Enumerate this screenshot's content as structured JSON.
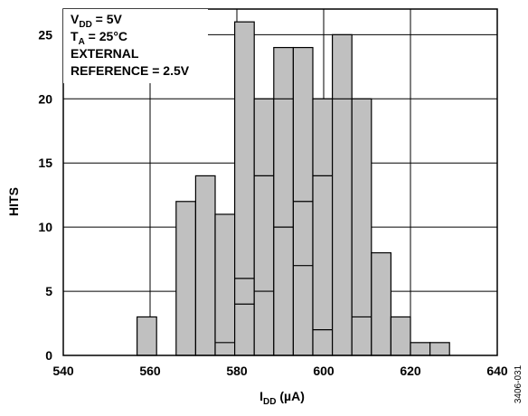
{
  "chart_data": {
    "type": "bar",
    "ylabel": "HITS",
    "xlabel": {
      "main": "I",
      "sub": "DD",
      "unit": " (µA)"
    },
    "xlim": [
      540,
      640
    ],
    "ylim": [
      0,
      27
    ],
    "xticks": [
      540,
      560,
      580,
      600,
      620,
      640
    ],
    "yticks": [
      0,
      5,
      10,
      15,
      20,
      25
    ],
    "xtick_labels": [
      "540",
      "560",
      "580",
      "600",
      "620",
      "640"
    ],
    "ytick_labels": [
      "0",
      "5",
      "10",
      "15",
      "20",
      "25"
    ],
    "grid": true,
    "bar_width": 4.5,
    "bars": [
      {
        "x": 559.25,
        "value": 3
      },
      {
        "x": 568.25,
        "value": 12
      },
      {
        "x": 572.75,
        "value": 14
      },
      {
        "x": 577.25,
        "value": 11
      },
      {
        "x": 581.75,
        "value": 26
      },
      {
        "x": 586.25,
        "value": 20
      },
      {
        "x": 590.75,
        "value": 24
      },
      {
        "x": 595.25,
        "value": 24
      },
      {
        "x": 599.75,
        "value": 20
      },
      {
        "x": 604.25,
        "value": 25
      },
      {
        "x": 608.75,
        "value": 20
      },
      {
        "x": 613.25,
        "value": 8
      },
      {
        "x": 617.75,
        "value": 3
      },
      {
        "x": 622.25,
        "value": 1
      },
      {
        "x": 626.75,
        "value": 1
      }
    ],
    "inner_lines": [
      {
        "x": 577.25,
        "value": 1
      },
      {
        "x": 581.75,
        "value": 6
      },
      {
        "x": 581.75,
        "value": 4
      },
      {
        "x": 586.25,
        "value": 14
      },
      {
        "x": 586.25,
        "value": 5
      },
      {
        "x": 590.75,
        "value": 20
      },
      {
        "x": 590.75,
        "value": 10
      },
      {
        "x": 595.25,
        "value": 12
      },
      {
        "x": 595.25,
        "value": 7
      },
      {
        "x": 599.75,
        "value": 14
      },
      {
        "x": 599.75,
        "value": 2
      },
      {
        "x": 604.25,
        "value": 20
      },
      {
        "x": 608.75,
        "value": 3
      }
    ],
    "annotations": [
      {
        "main": "V",
        "sub": "DD",
        "rest": " = 5V"
      },
      {
        "main": "T",
        "sub": "A",
        "rest": " = 25°C"
      },
      {
        "main": "EXTERNAL",
        "sub": "",
        "rest": ""
      },
      {
        "main": "REFERENCE = 2.5V",
        "sub": "",
        "rest": ""
      }
    ],
    "figure_id": "3406-031",
    "colors": {
      "bar_fill": "#c0c0c0",
      "bar_stroke": "#000000",
      "grid": "#000000",
      "background": "#ffffff"
    }
  }
}
